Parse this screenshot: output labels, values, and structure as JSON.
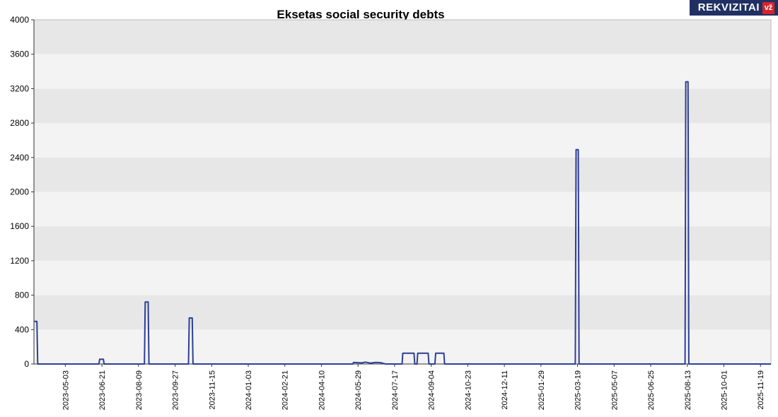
{
  "title": "Eksetas social security debts",
  "logo": {
    "brand": "REKVIZITAI",
    "badge": "vž"
  },
  "chart_data": {
    "type": "line",
    "title": "Eksetas social security debts",
    "xlabel": "",
    "ylabel": "",
    "ylim": [
      0,
      4000
    ],
    "y_ticks": [
      0,
      400,
      800,
      1200,
      1600,
      2000,
      2400,
      2800,
      3200,
      3600,
      4000
    ],
    "x_domain": [
      "2023-03-22",
      "2025-12-03"
    ],
    "x_ticks": [
      "2023-05-03",
      "2023-06-21",
      "2023-08-09",
      "2023-09-27",
      "2023-11-15",
      "2024-01-03",
      "2024-02-21",
      "2024-04-10",
      "2024-05-29",
      "2024-07-17",
      "2024-09-04",
      "2024-10-23",
      "2024-12-11",
      "2025-01-29",
      "2025-03-19",
      "2025-05-07",
      "2025-06-25",
      "2025-08-13",
      "2025-10-01",
      "2025-11-19"
    ],
    "grid": false,
    "legend": "none",
    "line_color": "#2e3f94",
    "band_colors": {
      "dark": "#e7e7e7",
      "light": "#f3f3f3"
    },
    "points": [
      [
        "2023-03-22",
        495
      ],
      [
        "2023-03-26",
        495
      ],
      [
        "2023-03-27",
        0
      ],
      [
        "2023-06-17",
        0
      ],
      [
        "2023-06-18",
        55
      ],
      [
        "2023-06-23",
        55
      ],
      [
        "2023-06-24",
        0
      ],
      [
        "2023-08-17",
        0
      ],
      [
        "2023-08-18",
        720
      ],
      [
        "2023-08-22",
        720
      ],
      [
        "2023-08-23",
        0
      ],
      [
        "2023-10-15",
        0
      ],
      [
        "2023-10-16",
        535
      ],
      [
        "2023-10-20",
        535
      ],
      [
        "2023-10-21",
        0
      ],
      [
        "2024-05-22",
        0
      ],
      [
        "2024-05-23",
        18
      ],
      [
        "2024-06-03",
        12
      ],
      [
        "2024-06-08",
        22
      ],
      [
        "2024-06-15",
        10
      ],
      [
        "2024-06-22",
        18
      ],
      [
        "2024-06-29",
        14
      ],
      [
        "2024-07-05",
        0
      ],
      [
        "2024-07-27",
        0
      ],
      [
        "2024-07-28",
        125
      ],
      [
        "2024-08-12",
        125
      ],
      [
        "2024-08-13",
        0
      ],
      [
        "2024-08-16",
        0
      ],
      [
        "2024-08-17",
        125
      ],
      [
        "2024-08-31",
        125
      ],
      [
        "2024-09-01",
        0
      ],
      [
        "2024-09-09",
        0
      ],
      [
        "2024-09-10",
        125
      ],
      [
        "2024-09-21",
        125
      ],
      [
        "2024-09-22",
        0
      ],
      [
        "2025-03-16",
        0
      ],
      [
        "2025-03-17",
        2490
      ],
      [
        "2025-03-20",
        2490
      ],
      [
        "2025-03-21",
        0
      ],
      [
        "2025-08-10",
        0
      ],
      [
        "2025-08-11",
        3280
      ],
      [
        "2025-08-14",
        3280
      ],
      [
        "2025-08-15",
        0
      ],
      [
        "2025-12-03",
        0
      ]
    ]
  }
}
